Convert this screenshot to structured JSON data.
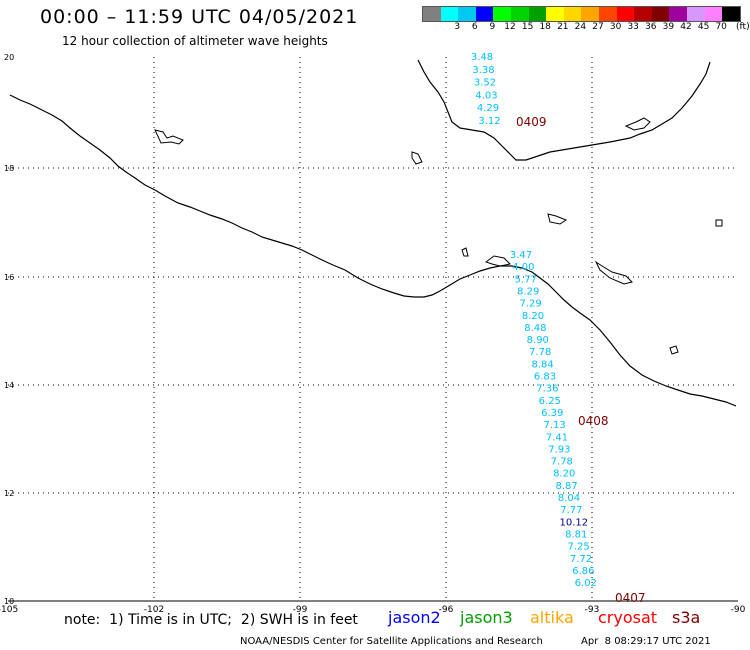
{
  "header": {
    "title": "00:00 – 11:59 UTC 04/05/2021",
    "subtitle": "12 hour collection of altimeter wave heights"
  },
  "legend": {
    "unit": "(ft)",
    "bins": [
      {
        "label": "",
        "color": "#808080"
      },
      {
        "label": "3",
        "color": "#00ffff"
      },
      {
        "label": "6",
        "color": "#00c8f0"
      },
      {
        "label": "9",
        "color": "#0000ff"
      },
      {
        "label": "12",
        "color": "#00ff00"
      },
      {
        "label": "15",
        "color": "#00d400"
      },
      {
        "label": "18",
        "color": "#00a000"
      },
      {
        "label": "21",
        "color": "#ffff00"
      },
      {
        "label": "24",
        "color": "#ffd700"
      },
      {
        "label": "27",
        "color": "#ffa500"
      },
      {
        "label": "30",
        "color": "#ff4500"
      },
      {
        "label": "33",
        "color": "#ff0000"
      },
      {
        "label": "36",
        "color": "#b40000"
      },
      {
        "label": "39",
        "color": "#800000"
      },
      {
        "label": "42",
        "color": "#a000a0"
      },
      {
        "label": "45",
        "color": "#d896ff"
      },
      {
        "label": "70",
        "color": "#ff80ff"
      },
      {
        "label": "",
        "color": "#000000"
      }
    ]
  },
  "axes": {
    "lon_labels": [
      "-105",
      "-102",
      "-99",
      "-96",
      "-93",
      "-90"
    ],
    "lat_labels": [
      "20",
      "18",
      "16",
      "14",
      "12",
      "10"
    ]
  },
  "tracks": {
    "north": {
      "color": "#00bfff",
      "values": [
        "3.48",
        "3.38",
        "3.52",
        "4.03",
        "4.29",
        "3.12"
      ],
      "time_label": "0409"
    },
    "south": {
      "color": "#00bfff",
      "values": [
        "3.47",
        "4.00",
        "5.77",
        "8.29",
        "7.29",
        "8.20",
        "8.48",
        "8.90",
        "7.78",
        "8.84",
        "6.83",
        "7.36",
        "6.25",
        "6.39",
        "7.13",
        "7.41",
        "7.93",
        "7.78",
        "8.20",
        "8.87",
        "8.04",
        "7.77",
        "10.12",
        "8.81",
        "7.25",
        "7.72",
        "6.86",
        "6.02"
      ],
      "highlight_color": "#00008b",
      "time_labels": [
        "0408",
        "0407"
      ]
    },
    "time_label_color": "#800000"
  },
  "footer": {
    "note": "note:  1) Time is in UTC;  2) SWH is in feet",
    "satellites": [
      {
        "name": "jason2",
        "color": "#0000ff"
      },
      {
        "name": "jason3",
        "color": "#00a000"
      },
      {
        "name": "altika",
        "color": "#ffa500"
      },
      {
        "name": "cryosat",
        "color": "#ff0000"
      },
      {
        "name": "s3a",
        "color": "#800000"
      }
    ],
    "credit": "NOAA/NESDIS Center for Satellite Applications and Research",
    "generated": "Apr  8 08:29:17 UTC 2021"
  }
}
